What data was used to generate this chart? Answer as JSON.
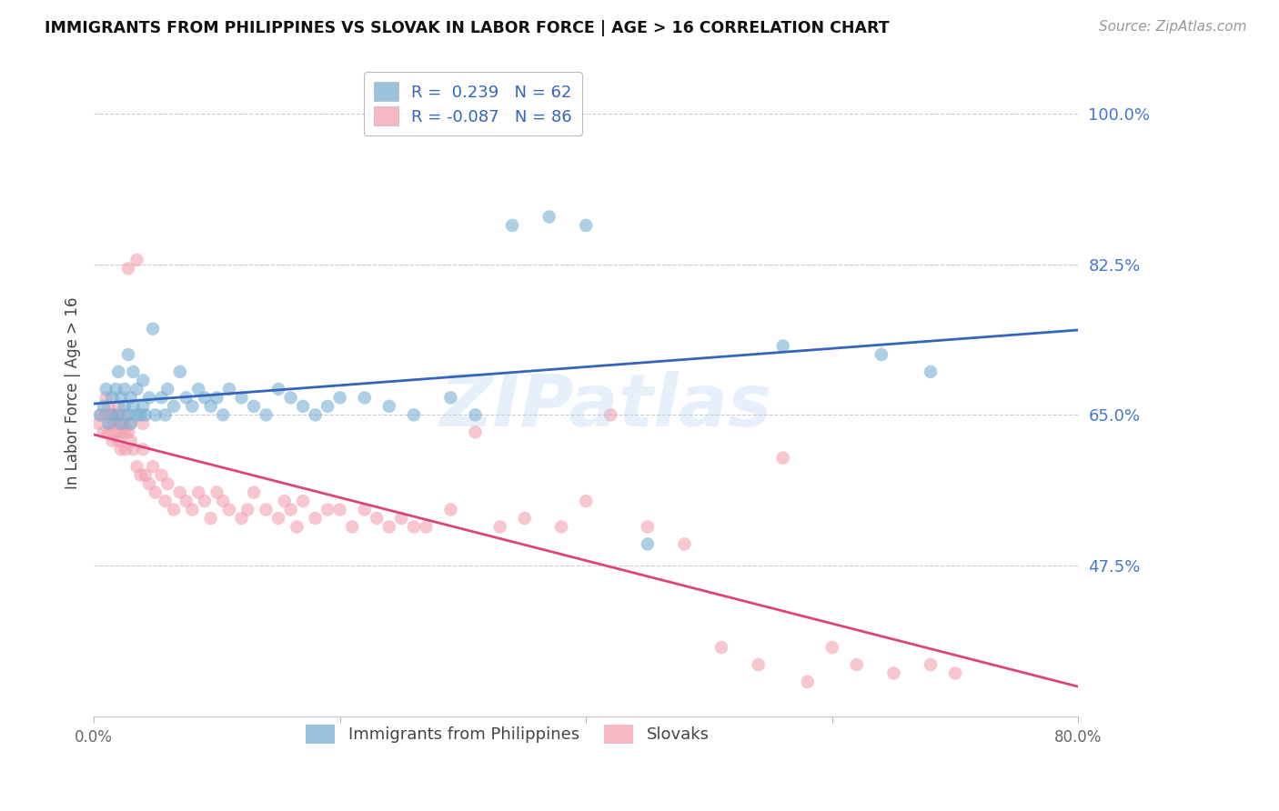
{
  "title": "IMMIGRANTS FROM PHILIPPINES VS SLOVAK IN LABOR FORCE | AGE > 16 CORRELATION CHART",
  "source": "Source: ZipAtlas.com",
  "ylabel": "In Labor Force | Age > 16",
  "xlim": [
    0.0,
    0.8
  ],
  "ylim": [
    0.3,
    1.05
  ],
  "yticks": [
    0.475,
    0.65,
    0.825,
    1.0
  ],
  "ytick_labels": [
    "47.5%",
    "65.0%",
    "82.5%",
    "100.0%"
  ],
  "xticks": [
    0.0,
    0.2,
    0.4,
    0.6,
    0.8
  ],
  "xtick_labels": [
    "0.0%",
    "",
    "",
    "",
    "80.0%"
  ],
  "bg_color": "#ffffff",
  "watermark": "ZIPatlas",
  "blue_color": "#7bafd4",
  "pink_color": "#f4a0b0",
  "blue_line_color": "#3366bb",
  "pink_line_color": "#dd4477",
  "legend_R_blue": " 0.239",
  "legend_N_blue": "62",
  "legend_R_pink": "-0.087",
  "legend_N_pink": "86",
  "legend_label_blue": "Immigrants from Philippines",
  "legend_label_pink": "Slovaks",
  "blue_x": [
    0.005,
    0.008,
    0.01,
    0.012,
    0.015,
    0.015,
    0.018,
    0.02,
    0.02,
    0.022,
    0.022,
    0.025,
    0.025,
    0.028,
    0.028,
    0.03,
    0.03,
    0.032,
    0.032,
    0.035,
    0.035,
    0.038,
    0.04,
    0.04,
    0.042,
    0.045,
    0.048,
    0.05,
    0.055,
    0.058,
    0.06,
    0.065,
    0.07,
    0.075,
    0.08,
    0.085,
    0.09,
    0.095,
    0.1,
    0.105,
    0.11,
    0.12,
    0.13,
    0.14,
    0.15,
    0.16,
    0.17,
    0.18,
    0.19,
    0.2,
    0.22,
    0.24,
    0.26,
    0.29,
    0.31,
    0.34,
    0.37,
    0.4,
    0.45,
    0.56,
    0.64,
    0.68
  ],
  "blue_y": [
    0.65,
    0.66,
    0.68,
    0.64,
    0.65,
    0.67,
    0.68,
    0.65,
    0.7,
    0.64,
    0.67,
    0.66,
    0.68,
    0.65,
    0.72,
    0.64,
    0.67,
    0.66,
    0.7,
    0.65,
    0.68,
    0.65,
    0.66,
    0.69,
    0.65,
    0.67,
    0.75,
    0.65,
    0.67,
    0.65,
    0.68,
    0.66,
    0.7,
    0.67,
    0.66,
    0.68,
    0.67,
    0.66,
    0.67,
    0.65,
    0.68,
    0.67,
    0.66,
    0.65,
    0.68,
    0.67,
    0.66,
    0.65,
    0.66,
    0.67,
    0.67,
    0.66,
    0.65,
    0.67,
    0.65,
    0.87,
    0.88,
    0.87,
    0.5,
    0.73,
    0.72,
    0.7
  ],
  "pink_x": [
    0.004,
    0.006,
    0.008,
    0.01,
    0.01,
    0.012,
    0.012,
    0.014,
    0.015,
    0.015,
    0.016,
    0.018,
    0.018,
    0.02,
    0.02,
    0.02,
    0.022,
    0.022,
    0.024,
    0.025,
    0.025,
    0.026,
    0.028,
    0.028,
    0.03,
    0.03,
    0.032,
    0.035,
    0.035,
    0.038,
    0.04,
    0.04,
    0.042,
    0.045,
    0.048,
    0.05,
    0.055,
    0.058,
    0.06,
    0.065,
    0.07,
    0.075,
    0.08,
    0.085,
    0.09,
    0.095,
    0.1,
    0.105,
    0.11,
    0.12,
    0.125,
    0.13,
    0.14,
    0.15,
    0.155,
    0.16,
    0.165,
    0.17,
    0.18,
    0.19,
    0.2,
    0.21,
    0.22,
    0.23,
    0.24,
    0.25,
    0.26,
    0.27,
    0.29,
    0.31,
    0.33,
    0.35,
    0.38,
    0.4,
    0.42,
    0.45,
    0.48,
    0.51,
    0.54,
    0.56,
    0.58,
    0.6,
    0.62,
    0.65,
    0.68,
    0.7
  ],
  "pink_y": [
    0.64,
    0.65,
    0.63,
    0.65,
    0.67,
    0.63,
    0.66,
    0.64,
    0.62,
    0.65,
    0.64,
    0.63,
    0.65,
    0.62,
    0.64,
    0.66,
    0.61,
    0.63,
    0.64,
    0.63,
    0.65,
    0.61,
    0.63,
    0.82,
    0.62,
    0.64,
    0.61,
    0.59,
    0.83,
    0.58,
    0.61,
    0.64,
    0.58,
    0.57,
    0.59,
    0.56,
    0.58,
    0.55,
    0.57,
    0.54,
    0.56,
    0.55,
    0.54,
    0.56,
    0.55,
    0.53,
    0.56,
    0.55,
    0.54,
    0.53,
    0.54,
    0.56,
    0.54,
    0.53,
    0.55,
    0.54,
    0.52,
    0.55,
    0.53,
    0.54,
    0.54,
    0.52,
    0.54,
    0.53,
    0.52,
    0.53,
    0.52,
    0.52,
    0.54,
    0.63,
    0.52,
    0.53,
    0.52,
    0.55,
    0.65,
    0.52,
    0.5,
    0.38,
    0.36,
    0.6,
    0.34,
    0.38,
    0.36,
    0.35,
    0.36,
    0.35
  ]
}
